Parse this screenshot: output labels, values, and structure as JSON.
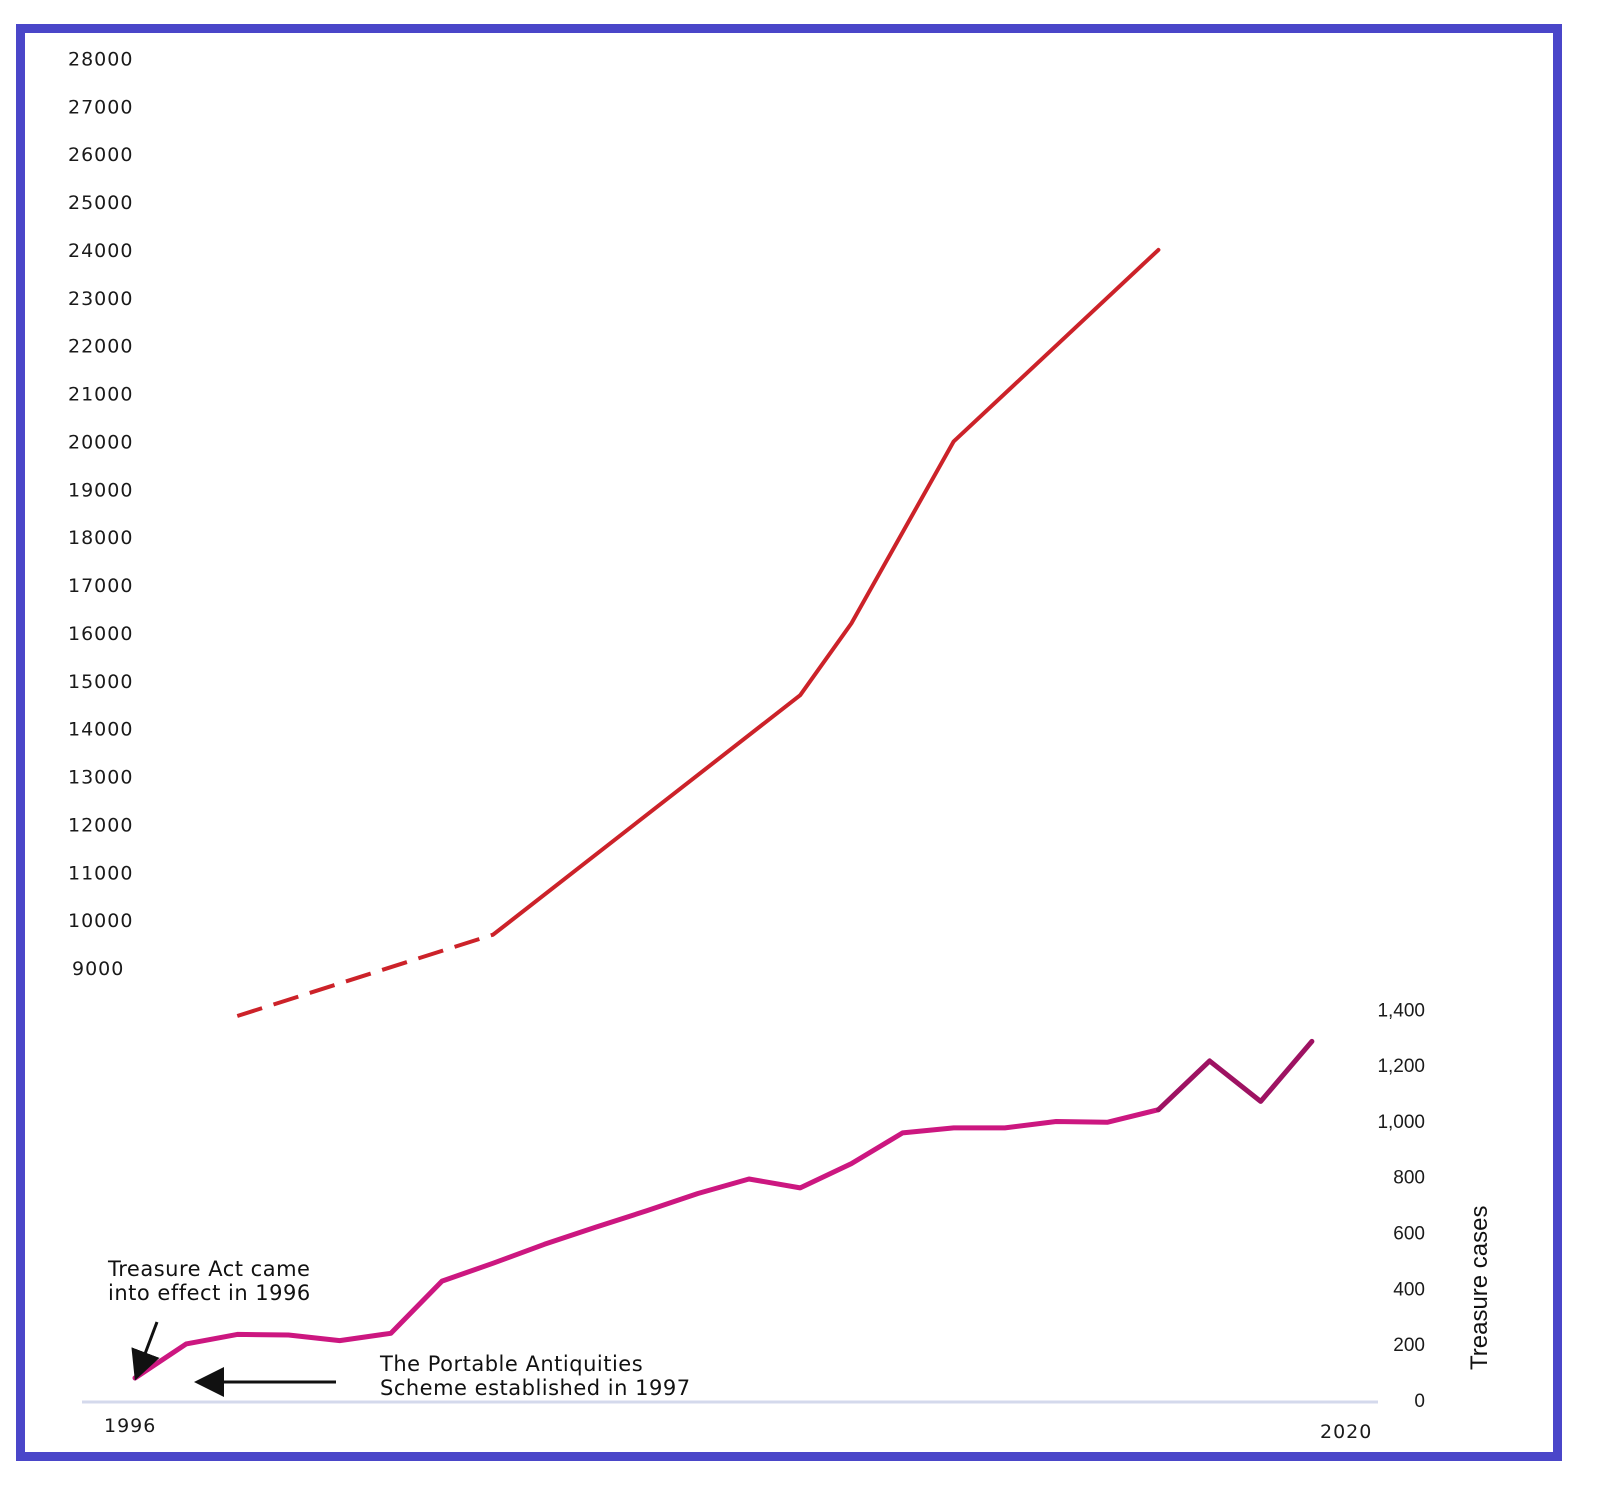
{
  "chart_data": [
    {
      "type": "line",
      "name": "upper-series",
      "y_ticks": [
        "9000",
        "10000",
        "11000",
        "12000",
        "13000",
        "14000",
        "15000",
        "16000",
        "17000",
        "18000",
        "19000",
        "20000",
        "21000",
        "22000",
        "23000",
        "24000",
        "25000",
        "26000",
        "27000",
        "28000"
      ],
      "ylim": [
        8000,
        28000
      ],
      "x": [
        1996,
        1997,
        1998,
        1999,
        2000,
        2001,
        2002,
        2003,
        2004,
        2005,
        2006,
        2007,
        2008,
        2009,
        2010,
        2011,
        2012,
        2013,
        2014,
        2015,
        2016,
        2017,
        2018,
        2019,
        2020
      ],
      "segments": [
        {
          "style": "dashed",
          "color": "#cc2229",
          "points": [
            [
              1998,
              8000
            ],
            [
              2003,
              9700
            ]
          ]
        },
        {
          "style": "solid",
          "color": "#cc2229",
          "points": [
            [
              2003,
              9700
            ],
            [
              2009,
              14700
            ],
            [
              2010,
              16200
            ],
            [
              2012,
              20000
            ],
            [
              2014,
              22000
            ],
            [
              2016,
              24000
            ]
          ]
        }
      ]
    },
    {
      "type": "line",
      "name": "treasure-cases",
      "ylabel": "Treasure cases",
      "y_ticks": [
        "0",
        "200",
        "400",
        "600",
        "800",
        "1,000",
        "1,200",
        "1,400"
      ],
      "ylim": [
        0,
        1400
      ],
      "x_labels": {
        "start": "1996",
        "end": "2020"
      },
      "series": [
        {
          "name": "Treasure cases",
          "color": "#cc1780",
          "x": [
            1996,
            1997,
            1998,
            1999,
            2000,
            2001,
            2002,
            2003,
            2004,
            2005,
            2006,
            2007,
            2008,
            2009,
            2010,
            2011,
            2012,
            2013,
            2014,
            2015,
            2016
          ],
          "values": [
            79,
            201,
            235,
            233,
            213,
            239,
            426,
            490,
            558,
            619,
            678,
            740,
            792,
            760,
            847,
            957,
            975,
            975,
            998,
            995,
            1040
          ]
        },
        {
          "name": "Treasure cases (later)",
          "color": "#9e1262",
          "x": [
            2016,
            2017,
            2018,
            2019
          ],
          "values": [
            1040,
            1215,
            1070,
            1285
          ]
        }
      ]
    }
  ],
  "annotations": {
    "treasure_act": {
      "line1": "Treasure Act came",
      "line2": "into effect in 1996"
    },
    "pas": {
      "line1": "The Portable Antiquities",
      "line2": "Scheme established in 1997"
    }
  }
}
